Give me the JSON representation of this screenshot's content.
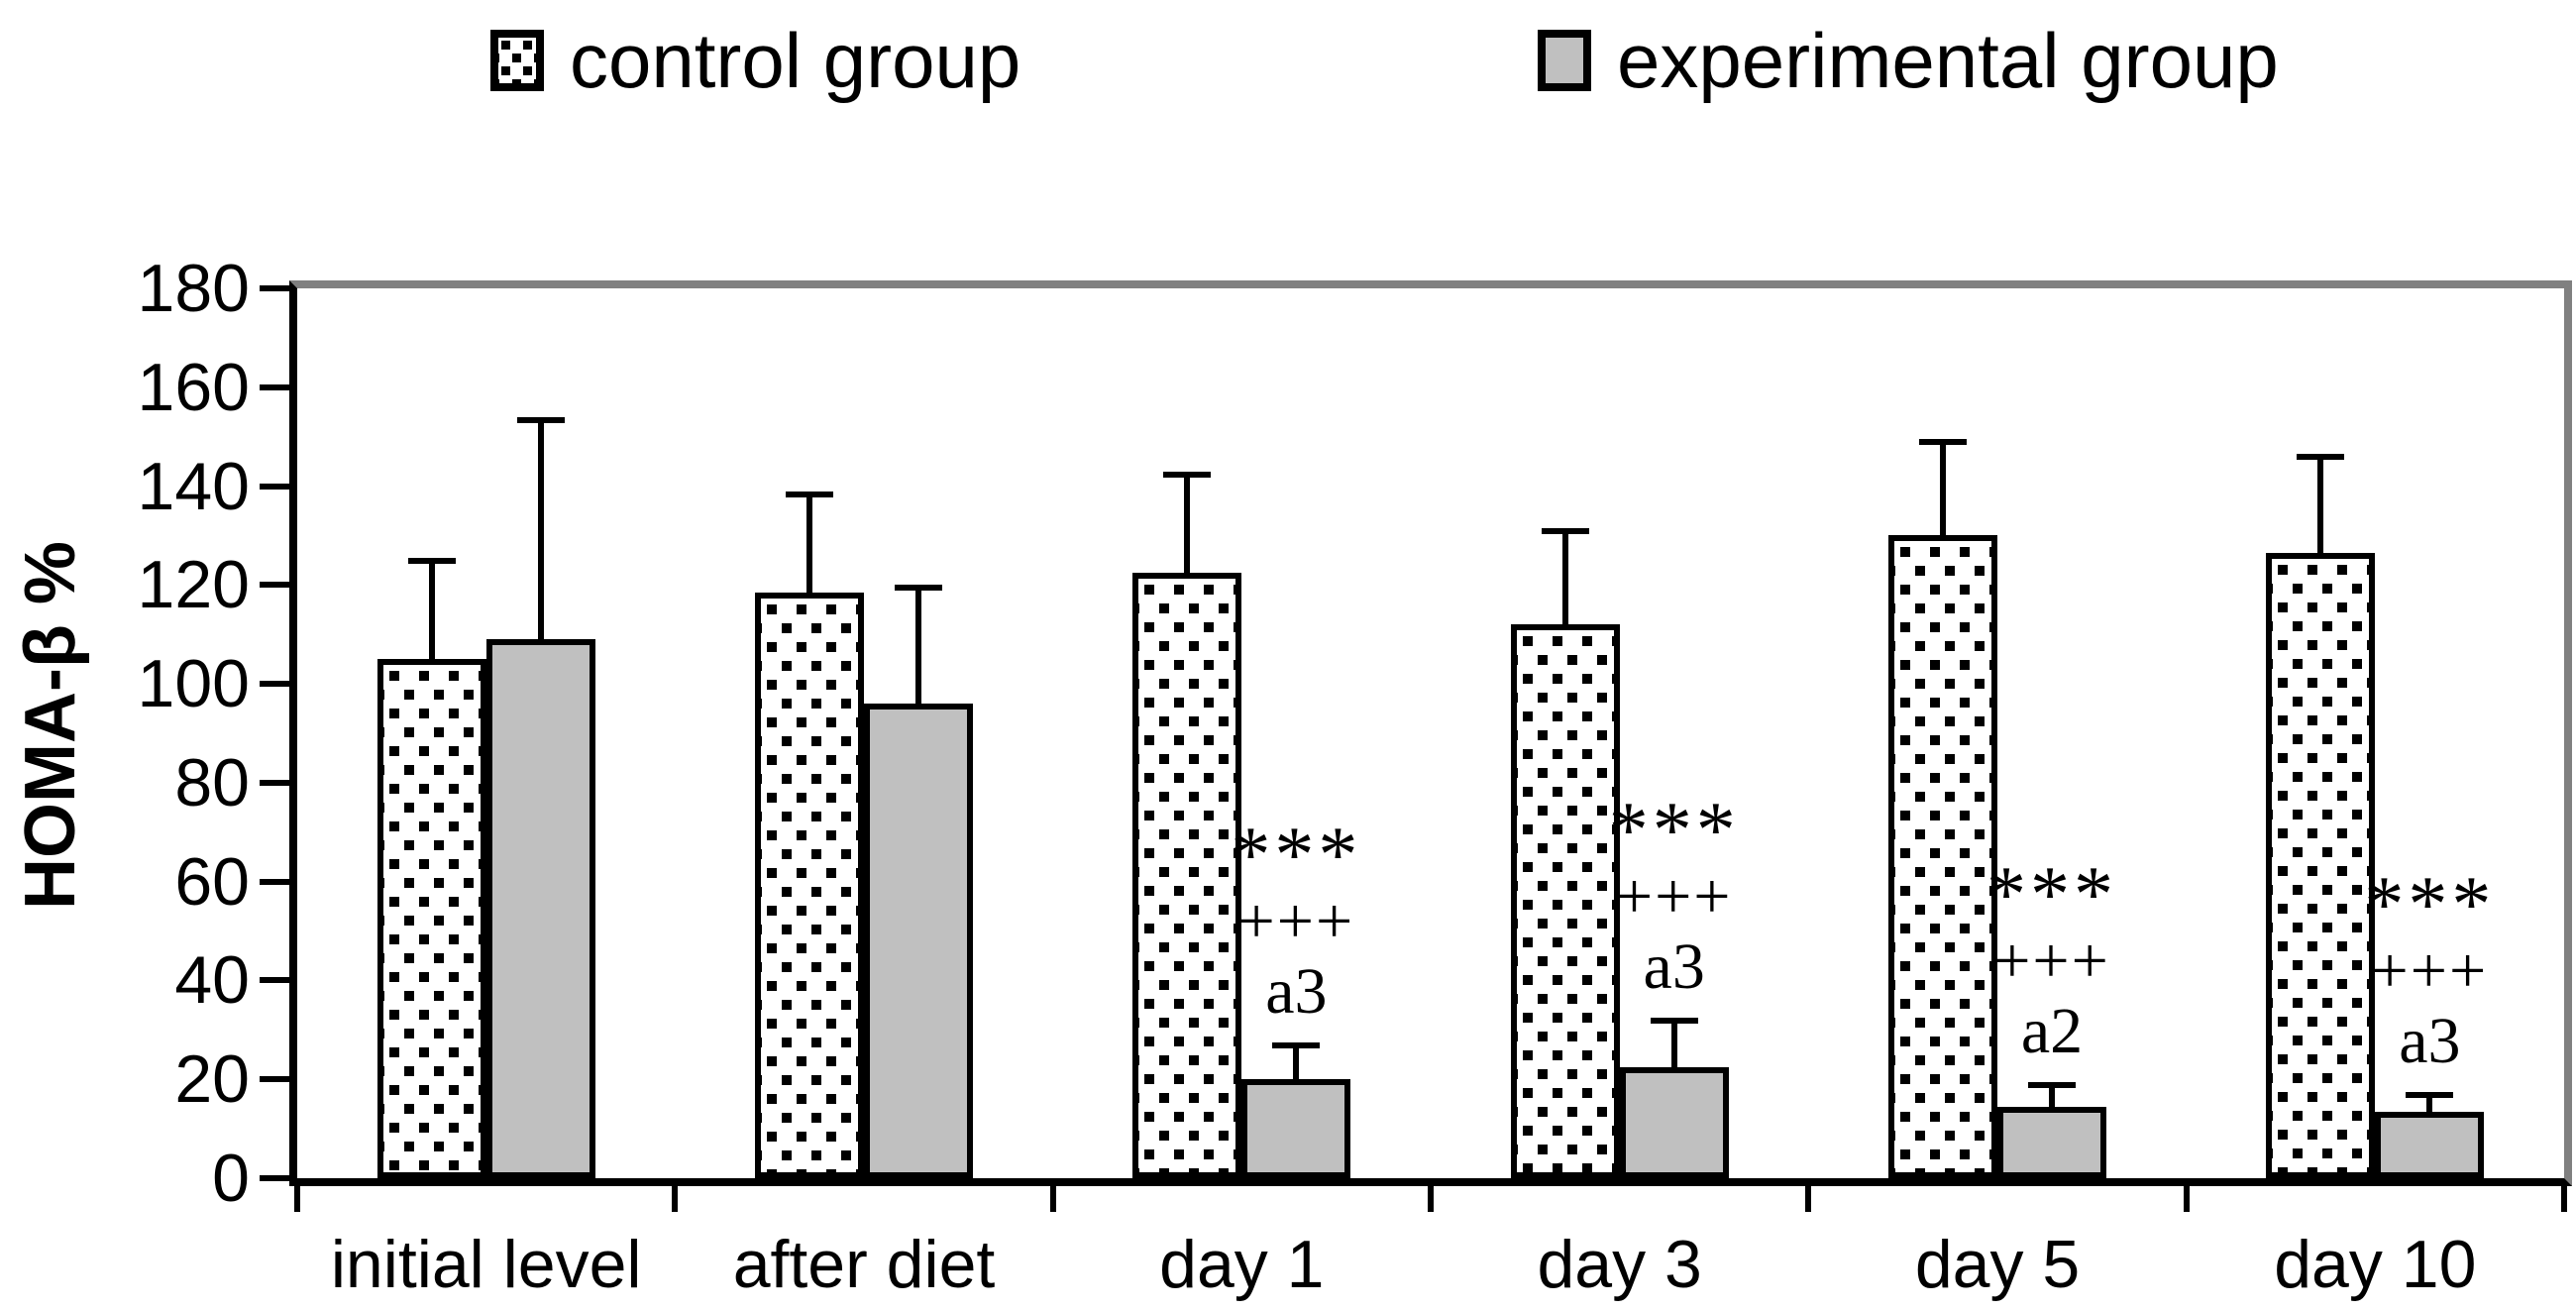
{
  "chart_data": {
    "type": "bar",
    "title": "",
    "ylabel": "HOMA-β %",
    "xlabel": "",
    "ylim": [
      0,
      180
    ],
    "ytick_step": 20,
    "grid": false,
    "legend_position": "top",
    "categories": [
      "initial level",
      "after diet",
      "day 1",
      "day 3",
      "day 5",
      "day 10"
    ],
    "series": [
      {
        "name": "control group",
        "fill": "dotted-pattern",
        "border_color": "#000000",
        "values": [
          105,
          118.5,
          122.5,
          112,
          130,
          126.5
        ],
        "error_upper": [
          20.5,
          20.5,
          20.5,
          19.5,
          19.5,
          20
        ]
      },
      {
        "name": "experimental group",
        "fill": "#c0c0c0",
        "border_color": "#000000",
        "values": [
          109,
          96,
          20,
          22.5,
          14.5,
          13.5
        ],
        "error_upper": [
          45,
          24,
          7.5,
          10,
          5,
          4
        ]
      }
    ],
    "annotations": [
      {
        "category": "day 1",
        "series": "experimental group",
        "lines": [
          "***",
          "+++",
          "a3"
        ]
      },
      {
        "category": "day 3",
        "series": "experimental group",
        "lines": [
          "***",
          "+++",
          "a3"
        ]
      },
      {
        "category": "day 5",
        "series": "experimental group",
        "lines": [
          "***",
          "+++",
          "a2"
        ]
      },
      {
        "category": "day 10",
        "series": "experimental group",
        "lines": [
          "***",
          "+++",
          "a3"
        ]
      }
    ]
  },
  "colors": {
    "axis": "#000000",
    "plot_top_right_border": "#808080",
    "experimental_fill": "#c0c0c0",
    "text": "#000000"
  }
}
